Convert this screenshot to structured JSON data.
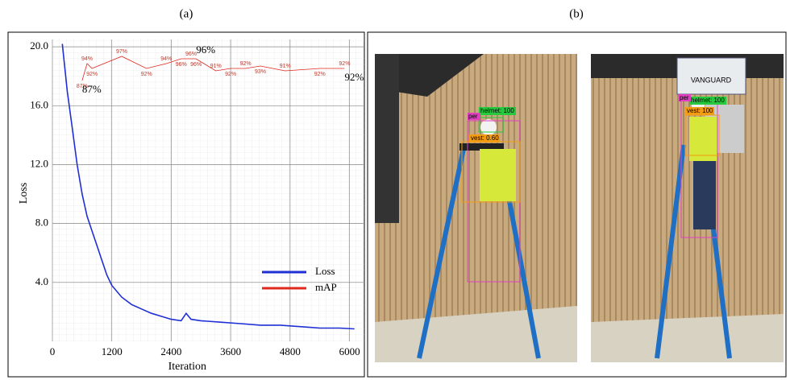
{
  "chart_data": {
    "type": "line",
    "panel_label": "(a)",
    "xlabel": "Iteration",
    "ylabel": "Loss",
    "xlim": [
      0,
      6300
    ],
    "xticks": [
      0,
      1200,
      2400,
      3600,
      4800,
      6000
    ],
    "ylim": [
      0,
      20.5
    ],
    "yticks": [
      {
        "value": 4,
        "label": "4.0"
      },
      {
        "value": 8,
        "label": "8.0"
      },
      {
        "value": 12,
        "label": "12.0"
      },
      {
        "value": 16,
        "label": "16.0"
      },
      {
        "value": 20,
        "label": "20.0"
      }
    ],
    "y2lim": [
      -21,
      104
    ],
    "grid": true,
    "legend": "lower right",
    "series": [
      {
        "name": "Loss",
        "color": "#1f2fd6",
        "x": [
          200,
          300,
          400,
          500,
          600,
          700,
          800,
          900,
          1000,
          1100,
          1200,
          1400,
          1600,
          1800,
          2000,
          2200,
          2400,
          2600,
          2700,
          2800,
          3000,
          3400,
          3800,
          4200,
          4600,
          5000,
          5400,
          5800,
          6100
        ],
        "values": [
          20.2,
          17,
          14.5,
          12,
          10,
          8.5,
          7.5,
          6.5,
          5.5,
          4.5,
          3.8,
          3.0,
          2.5,
          2.2,
          1.9,
          1.7,
          1.5,
          1.4,
          1.9,
          1.5,
          1.4,
          1.3,
          1.2,
          1.1,
          1.1,
          1.0,
          0.9,
          0.9,
          0.85
        ]
      },
      {
        "name": "mAP",
        "color": "#e0281e",
        "axis": "y2",
        "x": [
          600,
          700,
          800,
          1400,
          1900,
          2300,
          2600,
          2800,
          2900,
          3300,
          3600,
          3900,
          4200,
          4700,
          5400,
          5900
        ],
        "values": [
          87,
          94,
          92,
          97,
          92,
          94,
          96,
          96,
          96,
          91,
          92,
          92,
          93,
          91,
          92,
          92
        ],
        "value_labels": [
          "87%",
          "94%",
          "92%",
          "97%",
          "92%",
          "94%",
          "96%",
          "96%",
          "96%",
          "91%",
          "92%",
          "92%",
          "93%",
          "91%",
          "92%",
          "92%"
        ]
      }
    ],
    "annotations": [
      {
        "text": "87%",
        "x": 600,
        "y": 87
      },
      {
        "text": "96%",
        "x": 2900,
        "y": 96
      },
      {
        "text": "92%",
        "x": 5900,
        "y": 92
      }
    ]
  },
  "photos": {
    "panel_label": "(b)",
    "left": {
      "helmet": "helmet: 100",
      "person": "per",
      "vest": "vest: 0.60"
    },
    "right": {
      "helmet": "helmet: 100",
      "person": "per",
      "vest": "vest: 100",
      "sign": "VANGUARD"
    }
  }
}
